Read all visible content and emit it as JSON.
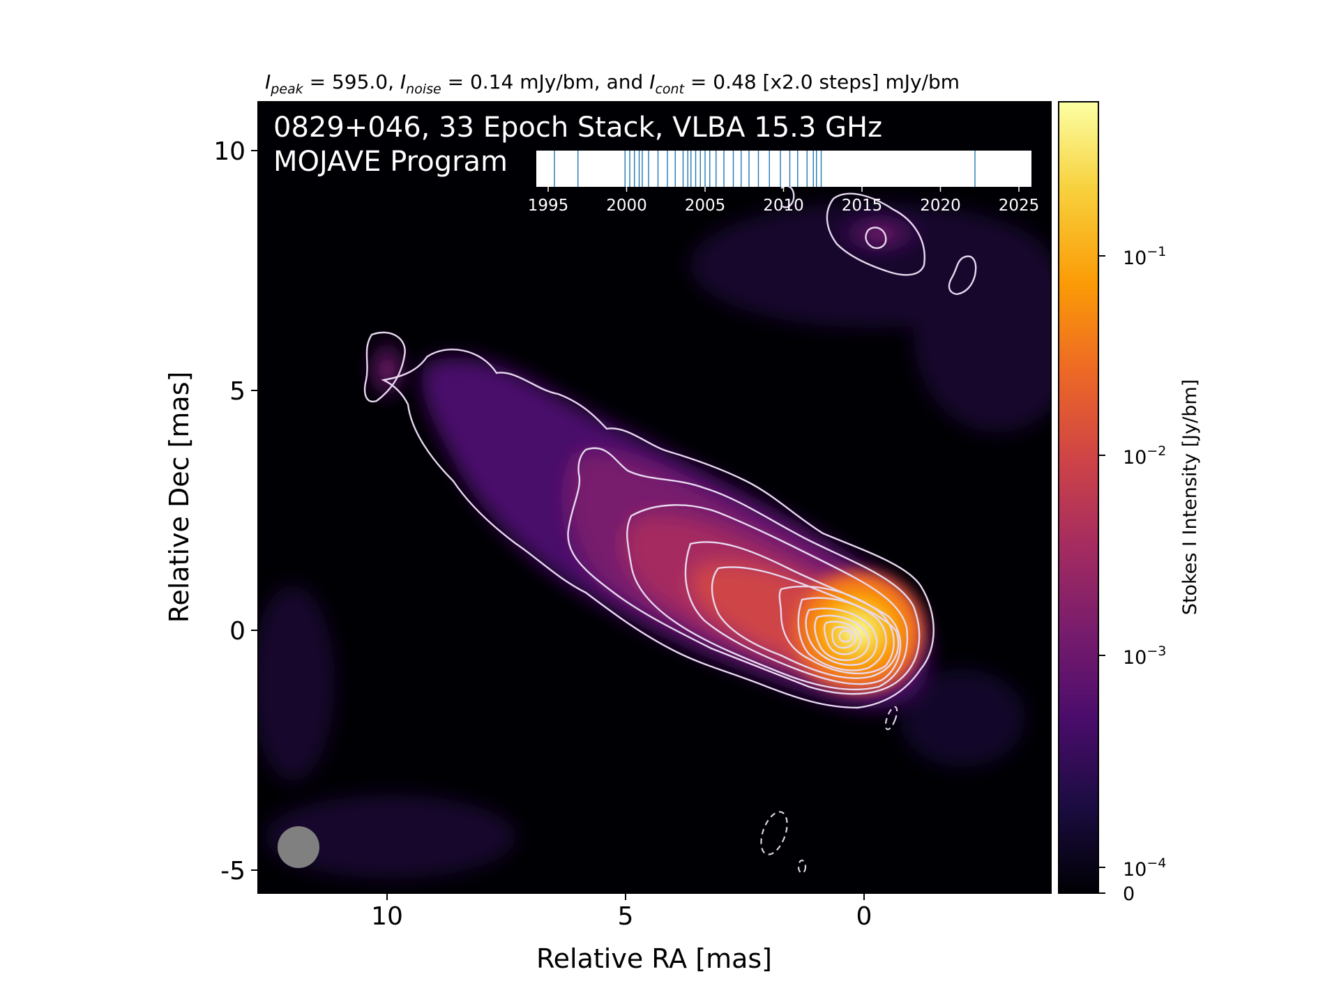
{
  "header": {
    "peak_label": "I",
    "peak_sub": "peak",
    "peak_text": " = 595.0, ",
    "noise_label": "I",
    "noise_sub": "noise",
    "noise_text": " = 0.14 mJy/bm, and ",
    "cont_label": "I",
    "cont_sub": "cont",
    "cont_text": " = 0.48 [x2.0 steps] mJy/bm"
  },
  "overlay": {
    "line1": "0829+046, 33 Epoch Stack, VLBA 15.3 GHz",
    "line2": "MOJAVE Program"
  },
  "timeline": {
    "ticks": [
      "1995",
      "2000",
      "2005",
      "2010",
      "2015",
      "2020",
      "2025"
    ],
    "epochs": [
      1995.4,
      1996.9,
      1999.9,
      2000.2,
      2000.5,
      2000.8,
      2001.0,
      2001.4,
      2002.0,
      2002.6,
      2003.1,
      2003.6,
      2003.9,
      2004.1,
      2004.4,
      2004.7,
      2005.0,
      2005.3,
      2005.7,
      2006.2,
      2006.8,
      2007.3,
      2007.8,
      2008.4,
      2009.1,
      2009.8,
      2010.4,
      2010.9,
      2011.5,
      2011.9,
      2012.1,
      2012.4,
      2022.2
    ]
  },
  "axes": {
    "xlabel": "Relative RA [mas]",
    "ylabel": "Relative Dec [mas]",
    "xticks": [
      "10",
      "5",
      "0"
    ],
    "yticks": [
      "10",
      "5",
      "0",
      "-5"
    ]
  },
  "colorbar": {
    "label": "Stokes I Intensity [Jy/bm]",
    "ticks": [
      {
        "base": "10",
        "exp": "−1"
      },
      {
        "base": "10",
        "exp": "−2"
      },
      {
        "base": "10",
        "exp": "−3"
      },
      {
        "base": "10",
        "exp": "−4"
      }
    ],
    "zero": "0",
    "colors": [
      "#000004",
      "#1b0c41",
      "#4a0c6b",
      "#781c6d",
      "#a52c60",
      "#cf4446",
      "#ed6925",
      "#fb9b06",
      "#f7d13d",
      "#fcffa4"
    ]
  }
}
